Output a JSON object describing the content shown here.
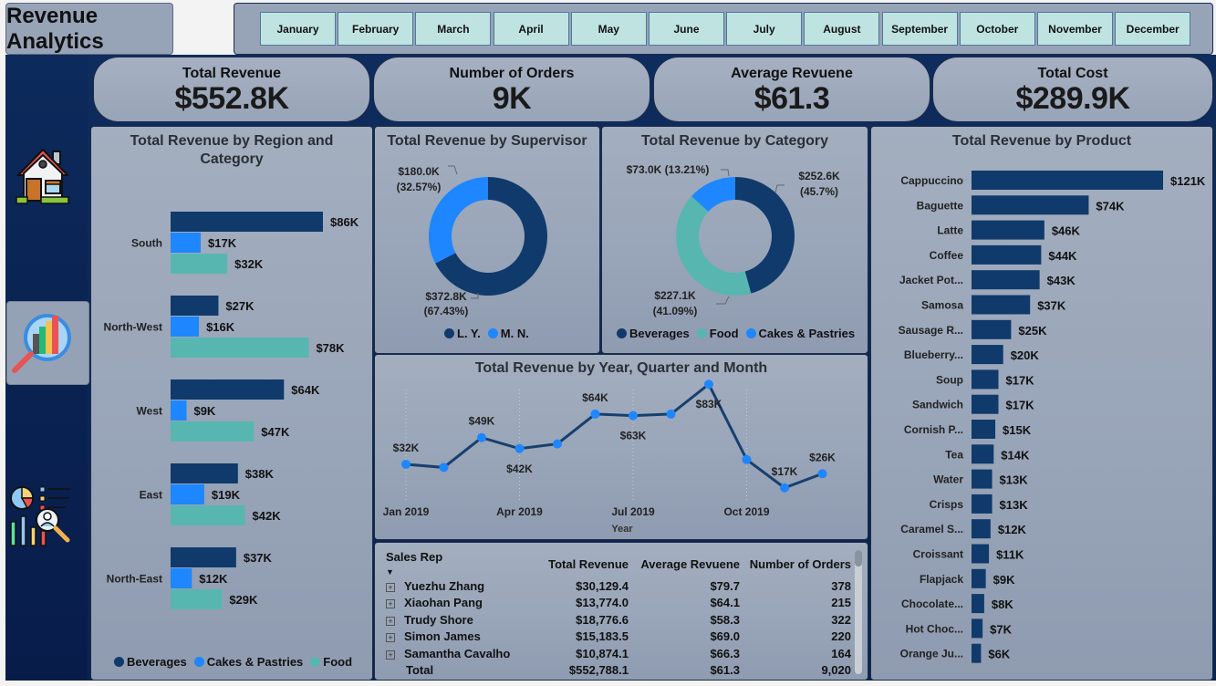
{
  "header": {
    "title": "Revenue Analytics"
  },
  "months": [
    "January",
    "February",
    "March",
    "April",
    "May",
    "June",
    "July",
    "August",
    "September",
    "October",
    "November",
    "December"
  ],
  "nav": [
    {
      "name": "home-icon"
    },
    {
      "name": "analytics-icon",
      "selected": true
    },
    {
      "name": "report-icon"
    }
  ],
  "kpis": [
    {
      "label": "Total Revenue",
      "value": "$552.8K"
    },
    {
      "label": "Number of Orders",
      "value": "9K"
    },
    {
      "label": "Average Revuene",
      "value": "$61.3"
    },
    {
      "label": "Total Cost",
      "value": "$289.9K"
    }
  ],
  "colors": {
    "beverages": "#0f3a6b",
    "cakes": "#1e86ff",
    "food": "#57b6b0",
    "line": "#16406e",
    "point": "#1e86ff"
  },
  "chart_data": [
    {
      "type": "bar",
      "orientation": "horizontal",
      "title": "Total Revenue by Region and Category",
      "categories": [
        "South",
        "North-West",
        "West",
        "East",
        "North-East"
      ],
      "series": [
        {
          "name": "Beverages",
          "values": [
            86,
            27,
            64,
            38,
            37
          ],
          "labels": [
            "$86K",
            "$27K",
            "$64K",
            "$38K",
            "$37K"
          ]
        },
        {
          "name": "Cakes & Pastries",
          "values": [
            17,
            16,
            9,
            19,
            12
          ],
          "labels": [
            "$17K",
            "$16K",
            "$9K",
            "$19K",
            "$12K"
          ]
        },
        {
          "name": "Food",
          "values": [
            32,
            78,
            47,
            42,
            29
          ],
          "labels": [
            "$32K",
            "$78K",
            "$47K",
            "$42K",
            "$29K"
          ]
        }
      ],
      "units": "K USD",
      "legend": [
        "Beverages",
        "Cakes & Pastries",
        "Food"
      ],
      "legend_position": "bottom"
    },
    {
      "type": "pie",
      "donut": true,
      "title": "Total Revenue by Supervisor",
      "slices": [
        {
          "name": "L. Y.",
          "value": 372.8,
          "label": "$372.8K",
          "pct": "(67.43%)"
        },
        {
          "name": "M. N.",
          "value": 180.0,
          "label": "$180.0K",
          "pct": "(32.57%)"
        }
      ],
      "legend": [
        "L. Y.",
        "M. N."
      ],
      "legend_position": "bottom"
    },
    {
      "type": "pie",
      "donut": true,
      "title": "Total Revenue by Category",
      "slices": [
        {
          "name": "Beverages",
          "value": 252.6,
          "label": "$252.6K",
          "pct": "(45.7%)"
        },
        {
          "name": "Food",
          "value": 227.1,
          "label": "$227.1K",
          "pct": "(41.09%)"
        },
        {
          "name": "Cakes & Pastries",
          "value": 73.0,
          "label": "$73.0K (13.21%)",
          "pct": ""
        }
      ],
      "legend": [
        "Beverages",
        "Food",
        "Cakes & Pastries"
      ],
      "legend_position": "bottom"
    },
    {
      "type": "line",
      "title": "Total Revenue by Year, Quarter and Month",
      "xlabel": "Year",
      "x": [
        "Jan 2019",
        "Feb 2019",
        "Mar 2019",
        "Apr 2019",
        "May 2019",
        "Jun 2019",
        "Jul 2019",
        "Aug 2019",
        "Sep 2019",
        "Oct 2019",
        "Nov 2019",
        "Dec 2019"
      ],
      "xticks": [
        "Jan 2019",
        "Apr 2019",
        "Jul 2019",
        "Oct 2019"
      ],
      "values": [
        32,
        30,
        49,
        42,
        45,
        64,
        63,
        64,
        83,
        35,
        17,
        26
      ],
      "labels": [
        "$32K",
        "",
        "$49K",
        "$42K",
        "",
        "$64K",
        "$63K",
        "",
        "$83K",
        "",
        "$17K",
        "$26K"
      ],
      "units": "K USD",
      "ylim": [
        0,
        100
      ]
    },
    {
      "type": "bar",
      "orientation": "horizontal",
      "title": "Total Revenue by Product",
      "categories": [
        "Cappuccino",
        "Baguette",
        "Latte",
        "Coffee",
        "Jacket Pot...",
        "Samosa",
        "Sausage R...",
        "Blueberry...",
        "Soup",
        "Sandwich",
        "Cornish P...",
        "Tea",
        "Water",
        "Crisps",
        "Caramel S...",
        "Croissant",
        "Flapjack",
        "Chocolate...",
        "Hot Choc...",
        "Orange Ju..."
      ],
      "values": [
        121,
        74,
        46,
        44,
        43,
        37,
        25,
        20,
        17,
        17,
        15,
        14,
        13,
        13,
        12,
        11,
        9,
        8,
        7,
        6
      ],
      "labels": [
        "$121K",
        "$74K",
        "$46K",
        "$44K",
        "$43K",
        "$37K",
        "$25K",
        "$20K",
        "$17K",
        "$17K",
        "$15K",
        "$14K",
        "$13K",
        "$13K",
        "$12K",
        "$11K",
        "$9K",
        "$8K",
        "$7K",
        "$6K"
      ],
      "units": "K USD"
    }
  ],
  "table": {
    "columns": [
      "Sales Rep",
      "Total Revenue",
      "Average Revuene",
      "Number of Orders"
    ],
    "rows": [
      [
        "Yuezhu Zhang",
        "$30,129.4",
        "$79.7",
        "378"
      ],
      [
        "Xiaohan Pang",
        "$13,774.0",
        "$64.1",
        "215"
      ],
      [
        "Trudy Shore",
        "$18,776.6",
        "$58.3",
        "322"
      ],
      [
        "Simon James",
        "$15,183.5",
        "$69.0",
        "220"
      ],
      [
        "Samantha Cavalho",
        "$10,874.1",
        "$66.3",
        "164"
      ]
    ],
    "total": [
      "Total",
      "$552,788.1",
      "$61.3",
      "9,020"
    ],
    "expand_glyph": "+",
    "sort_glyph": "▼"
  }
}
